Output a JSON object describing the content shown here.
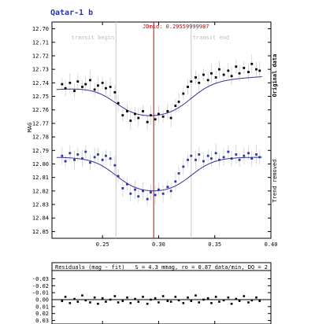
{
  "chart_data": [
    {
      "type": "scatter",
      "title": "Qatar-1 b",
      "ylabel": "MAG",
      "ylim": [
        12.855,
        12.695
      ],
      "xlim": [
        0.205,
        0.4
      ],
      "y_ticks": [
        12.7,
        12.71,
        12.72,
        12.73,
        12.74,
        12.75,
        12.76,
        12.77,
        12.78,
        12.79,
        12.8,
        12.81,
        12.82,
        12.83,
        12.84,
        12.85
      ],
      "y_tick_labels": [
        "12.70",
        "12.71",
        "12.72",
        "12.73",
        "12.74",
        "12.75",
        "12.76",
        "12.77",
        "12.78",
        "12.79",
        "12.80",
        "12.81",
        "12.82",
        "12.83",
        "12.84",
        "12.85"
      ],
      "x_ticks": [
        0.25,
        0.3,
        0.35,
        0.4
      ],
      "x_tick_labels": [
        "0.25",
        "0.30",
        "0.35",
        "0.40"
      ],
      "markers": {
        "transit_begin": {
          "x": 0.262,
          "label": "transit begin"
        },
        "transit_end": {
          "x": 0.329,
          "label": "transit end"
        },
        "jdmid": {
          "x": 0.2956,
          "label": "JDmid: 0.29559999987"
        }
      },
      "right_labels": {
        "original": "Original data",
        "trend": "Trend removed"
      },
      "series": [
        {
          "name": "Original data",
          "color": "#000000",
          "model": {
            "oot": 12.74,
            "depth": 0.026,
            "t1": 0.262,
            "t4": 0.329,
            "tau": 0.0105,
            "slope_before": -0.052,
            "slope_after": -0.05,
            "ref_x": 0.3
          },
          "x": [
            0.214,
            0.217,
            0.221,
            0.225,
            0.228,
            0.232,
            0.235,
            0.239,
            0.243,
            0.246,
            0.25,
            0.253,
            0.257,
            0.261,
            0.264,
            0.268,
            0.272,
            0.275,
            0.279,
            0.282,
            0.286,
            0.29,
            0.293,
            0.297,
            0.3,
            0.304,
            0.308,
            0.311,
            0.315,
            0.318,
            0.322,
            0.326,
            0.329,
            0.333,
            0.336,
            0.34,
            0.344,
            0.347,
            0.351,
            0.354,
            0.358,
            0.362,
            0.365,
            0.369,
            0.372,
            0.376,
            0.38,
            0.383,
            0.387,
            0.39
          ],
          "y": [
            12.741,
            12.744,
            12.74,
            12.746,
            12.739,
            12.743,
            12.741,
            12.738,
            12.745,
            12.742,
            12.74,
            12.744,
            12.743,
            12.747,
            12.755,
            12.764,
            12.761,
            12.768,
            12.763,
            12.766,
            12.761,
            12.769,
            12.764,
            12.767,
            12.763,
            12.765,
            12.761,
            12.766,
            12.757,
            12.754,
            12.748,
            12.743,
            12.739,
            12.736,
            12.74,
            12.734,
            12.738,
            12.733,
            12.736,
            12.73,
            12.734,
            12.731,
            12.735,
            12.728,
            12.733,
            12.729,
            12.732,
            12.726,
            12.73,
            12.731
          ]
        },
        {
          "name": "Trend removed",
          "color": "#2a33a8",
          "model": {
            "oot": 12.795,
            "depth": 0.027,
            "t1": 0.262,
            "t4": 0.329,
            "tau": 0.0105
          },
          "x": [
            0.214,
            0.217,
            0.221,
            0.225,
            0.228,
            0.232,
            0.235,
            0.239,
            0.243,
            0.246,
            0.25,
            0.253,
            0.257,
            0.261,
            0.264,
            0.268,
            0.272,
            0.275,
            0.279,
            0.282,
            0.286,
            0.29,
            0.293,
            0.297,
            0.3,
            0.304,
            0.308,
            0.311,
            0.315,
            0.318,
            0.322,
            0.326,
            0.329,
            0.333,
            0.336,
            0.34,
            0.344,
            0.347,
            0.351,
            0.354,
            0.358,
            0.362,
            0.365,
            0.369,
            0.372,
            0.376,
            0.38,
            0.383,
            0.387,
            0.39
          ],
          "y": [
            12.794,
            12.798,
            12.792,
            12.797,
            12.793,
            12.796,
            12.791,
            12.799,
            12.795,
            12.793,
            12.797,
            12.794,
            12.796,
            12.801,
            12.809,
            12.818,
            12.815,
            12.822,
            12.819,
            12.824,
            12.82,
            12.826,
            12.821,
            12.823,
            12.819,
            12.822,
            12.817,
            12.82,
            12.813,
            12.807,
            12.802,
            12.797,
            12.794,
            12.797,
            12.793,
            12.798,
            12.794,
            12.796,
            12.792,
            12.797,
            12.795,
            12.791,
            12.796,
            12.793,
            12.797,
            12.794,
            12.792,
            12.796,
            12.793,
            12.795
          ]
        }
      ]
    },
    {
      "type": "scatter",
      "title": "Residuals (mag - fit)",
      "stats": "S = 4.3 mmag, ro = 0.87 data/min, DQ = 2",
      "ylim": [
        0.035,
        -0.035
      ],
      "xlim": [
        0.205,
        0.4
      ],
      "y_ticks": [
        -0.03,
        -0.02,
        -0.01,
        0.0,
        0.01,
        0.02,
        0.03
      ],
      "y_tick_labels": [
        "-0.03",
        "-0.02",
        "-0.01",
        "0.00",
        "0.01",
        "0.02",
        "0.03"
      ],
      "x": [
        0.214,
        0.217,
        0.221,
        0.225,
        0.228,
        0.232,
        0.235,
        0.239,
        0.243,
        0.246,
        0.25,
        0.253,
        0.257,
        0.261,
        0.264,
        0.268,
        0.272,
        0.275,
        0.279,
        0.282,
        0.286,
        0.29,
        0.293,
        0.297,
        0.3,
        0.304,
        0.308,
        0.311,
        0.315,
        0.318,
        0.322,
        0.326,
        0.329,
        0.333,
        0.336,
        0.34,
        0.344,
        0.347,
        0.351,
        0.354,
        0.358,
        0.362,
        0.365,
        0.369,
        0.372,
        0.376,
        0.38,
        0.383,
        0.387,
        0.39
      ],
      "y": [
        0.002,
        -0.004,
        0.005,
        -0.001,
        0.003,
        -0.006,
        0.001,
        0.004,
        -0.003,
        0.006,
        -0.002,
        0.003,
        0.0,
        -0.005,
        0.004,
        0.002,
        -0.003,
        0.005,
        -0.001,
        0.003,
        -0.004,
        0.006,
        0.0,
        -0.002,
        0.004,
        -0.005,
        0.002,
        0.003,
        -0.004,
        0.001,
        0.005,
        -0.003,
        0.002,
        -0.006,
        0.004,
        0.0,
        -0.002,
        0.005,
        -0.004,
        0.003,
        0.001,
        -0.003,
        0.006,
        -0.001,
        0.002,
        -0.005,
        0.004,
        0.001,
        -0.003,
        0.002
      ]
    }
  ]
}
